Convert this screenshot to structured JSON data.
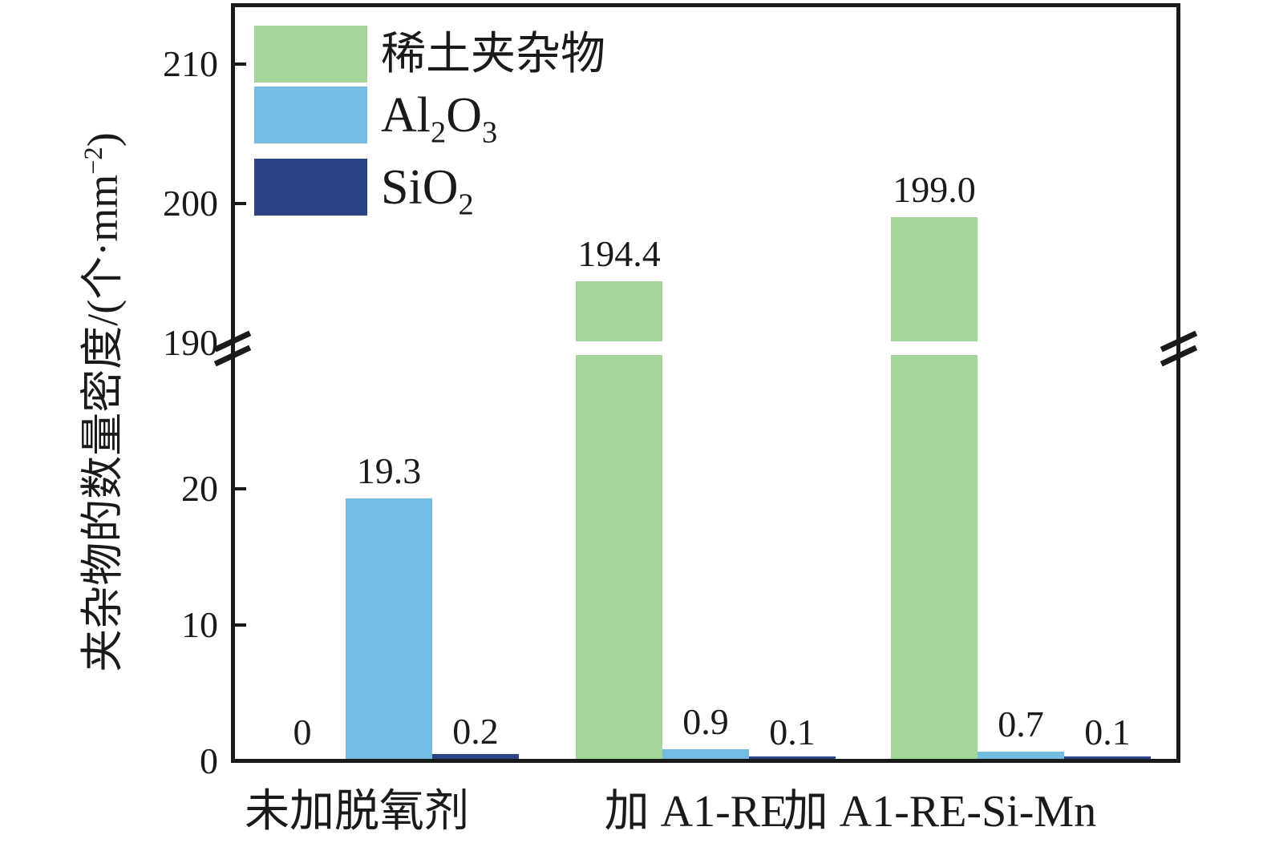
{
  "chart_data": {
    "type": "bar",
    "title": "",
    "xlabel": "",
    "ylabel": "夹杂物的数量密度/(个·mm⁻²)",
    "ylabel_segments": [
      {
        "t": "夹杂物的数量密度/(个·mm"
      },
      {
        "t": "−2",
        "sup": true
      },
      {
        "t": ")"
      }
    ],
    "categories": [
      "未加脱氧剂",
      "加 A1-RE",
      "加 A1-RE-Si-Mn"
    ],
    "series": [
      {
        "name": "稀土夹杂物",
        "name_segments": [
          {
            "t": "稀土夹杂物"
          }
        ],
        "color": "#a3d49a",
        "values": [
          0,
          194.4,
          199.0
        ],
        "value_labels": [
          "0",
          "194.4",
          "199.0"
        ]
      },
      {
        "name": "Al2O3",
        "name_segments": [
          {
            "t": "Al"
          },
          {
            "t": "2",
            "sub": true
          },
          {
            "t": "O"
          },
          {
            "t": "3",
            "sub": true
          }
        ],
        "color": "#73bde3",
        "values": [
          19.3,
          0.9,
          0.7
        ],
        "value_labels": [
          "19.3",
          "0.9",
          "0.7"
        ]
      },
      {
        "name": "SiO2",
        "name_segments": [
          {
            "t": "SiO"
          },
          {
            "t": "2",
            "sub": true
          }
        ],
        "color": "#2a4487",
        "values": [
          0.2,
          0.1,
          0.1
        ],
        "value_labels": [
          "0.2",
          "0.1",
          "0.1"
        ]
      }
    ],
    "y_axis": {
      "broken": true,
      "lower_ticks": [
        0,
        10,
        20
      ],
      "upper_ticks": [
        190,
        200,
        210
      ],
      "lower_range": [
        0,
        30
      ],
      "upper_range": [
        190,
        213
      ]
    },
    "legend_position": "upper-left",
    "grid": false,
    "axis_color": "#1a1a1a",
    "background_color": "#ffffff"
  }
}
